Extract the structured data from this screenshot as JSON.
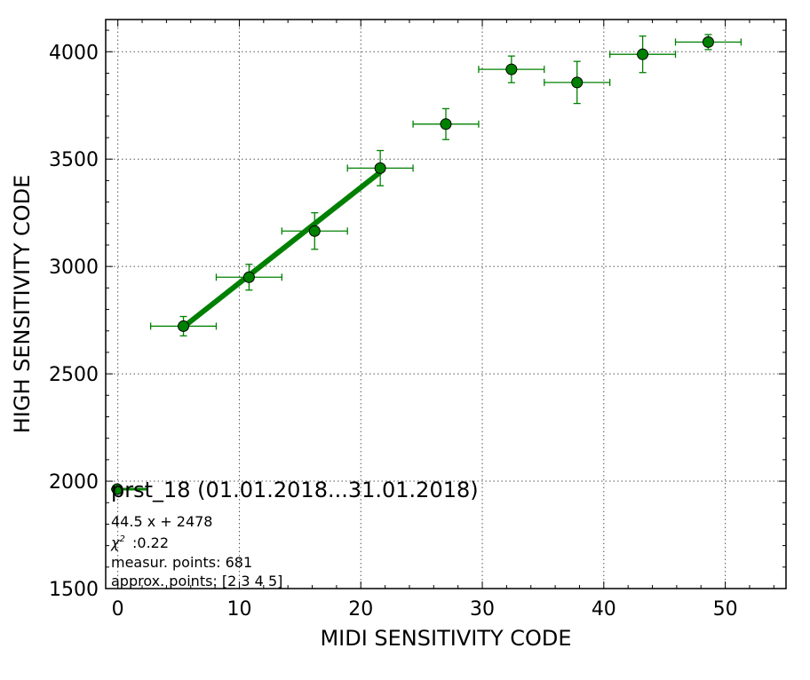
{
  "chart_data": {
    "type": "scatter",
    "xlabel": "MIDI SENSITIVITY CODE",
    "ylabel": "HIGH SENSITIVITY CODE",
    "xlim": [
      -1,
      55
    ],
    "ylim": [
      1500,
      4150
    ],
    "xticks": [
      0,
      10,
      20,
      30,
      40,
      50
    ],
    "yticks": [
      1500,
      2000,
      2500,
      3000,
      3500,
      4000
    ],
    "grid": true,
    "series": [
      {
        "name": "prst_18 (01.01.2018...31.01.2018)",
        "color": "#008000",
        "points": [
          {
            "x": 5.4,
            "y": 2722,
            "xerr": 2.7,
            "yerr": 45
          },
          {
            "x": 10.8,
            "y": 2950,
            "xerr": 2.7,
            "yerr": 60
          },
          {
            "x": 16.2,
            "y": 3165,
            "xerr": 2.7,
            "yerr": 85
          },
          {
            "x": 21.6,
            "y": 3458,
            "xerr": 2.7,
            "yerr": 82
          },
          {
            "x": 27.0,
            "y": 3663,
            "xerr": 2.7,
            "yerr": 72
          },
          {
            "x": 32.4,
            "y": 3918,
            "xerr": 2.7,
            "yerr": 62
          },
          {
            "x": 37.8,
            "y": 3857,
            "xerr": 2.7,
            "yerr": 98
          },
          {
            "x": 43.2,
            "y": 3988,
            "xerr": 2.7,
            "yerr": 85
          },
          {
            "x": 48.6,
            "y": 4045,
            "xerr": 2.7,
            "yerr": 35
          }
        ]
      }
    ],
    "fit_line": {
      "slope": 44.5,
      "intercept": 2478,
      "x_range": [
        5.4,
        21.6
      ],
      "color": "#008000"
    },
    "legend": {
      "placement": "bottom-left",
      "label": "prst_18 (01.01.2018...31.01.2018)",
      "fit_text": "44.5 x + 2478",
      "chi_text": ":0.22",
      "measur_text": "measur. points: 681",
      "approx_text": "approx. points: [2 3 4 5]"
    }
  }
}
